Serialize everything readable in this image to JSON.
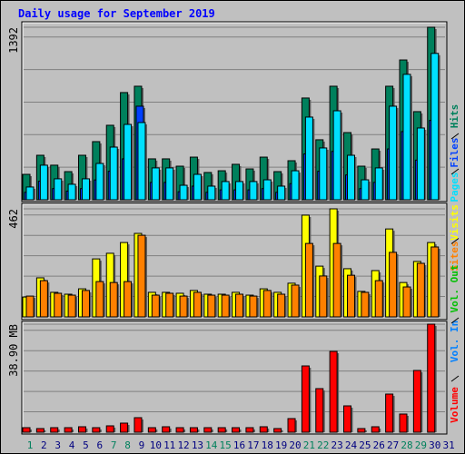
{
  "chart_data": [
    {
      "type": "bar",
      "title": "Daily usage for September 2019",
      "ylim": [
        0,
        1392
      ],
      "yticks": [
        1392
      ],
      "series": [
        {
          "name": "Hits",
          "color": "#00805c",
          "values": [
            205,
            359,
            279,
            227,
            359,
            469,
            601,
            865,
            916,
            330,
            330,
            271,
            344,
            220,
            234,
            286,
            249,
            344,
            227,
            315,
            821,
            484,
            916,
            542,
            271,
            410,
            916,
            1128,
            711,
            1392,
            null
          ]
        },
        {
          "name": "Files",
          "color": "#0040ff",
          "values": [
            60,
            150,
            90,
            70,
            90,
            160,
            230,
            330,
            755,
            140,
            140,
            65,
            110,
            60,
            80,
            80,
            80,
            90,
            60,
            130,
            370,
            230,
            390,
            200,
            90,
            140,
            410,
            550,
            320,
            640,
            null
          ]
        },
        {
          "name": "Pages",
          "color": "#00e0ff",
          "values": [
            103,
            279,
            169,
            125,
            169,
            293,
            425,
            608,
            623,
            257,
            257,
            117,
            205,
            110,
            147,
            147,
            147,
            161,
            110,
            234,
            667,
            418,
            718,
            359,
            161,
            257,
            755,
            1012,
            579,
            1181,
            null
          ]
        }
      ]
    },
    {
      "type": "bar",
      "ylim": [
        0,
        462
      ],
      "yticks": [
        462
      ],
      "series": [
        {
          "name": "Visits",
          "color": "#ffff00",
          "values": [
            85,
            167,
            105,
            97,
            120,
            248,
            272,
            318,
            357,
            105,
            105,
            101,
            113,
            97,
            97,
            105,
            93,
            120,
            105,
            144,
            435,
            217,
            462,
            206,
            109,
            198,
            376,
            147,
            237,
            318,
            null
          ]
        },
        {
          "name": "Sites",
          "color": "#ff8000",
          "values": [
            89,
            155,
            101,
            93,
            113,
            151,
            147,
            151,
            349,
            93,
            101,
            89,
            105,
            93,
            93,
            97,
            89,
            113,
            97,
            136,
            314,
            175,
            314,
            178,
            105,
            155,
            276,
            128,
            229,
            299,
            null
          ]
        }
      ]
    },
    {
      "type": "bar",
      "ylim": [
        0,
        38.9
      ],
      "yticks": [
        {
          "value": 38.9,
          "label": "38.90 MB"
        }
      ],
      "categories": [
        "1",
        "2",
        "3",
        "4",
        "5",
        "6",
        "7",
        "8",
        "9",
        "10",
        "11",
        "12",
        "13",
        "14",
        "15",
        "16",
        "17",
        "18",
        "19",
        "20",
        "21",
        "22",
        "23",
        "24",
        "25",
        "26",
        "27",
        "28",
        "29",
        "30",
        "31"
      ],
      "category_colors": [
        "#00805c",
        "#000080",
        "#000080",
        "#000080",
        "#000080",
        "#000080",
        "#00805c",
        "#00805c",
        "#000080",
        "#000080",
        "#000080",
        "#000080",
        "#000080",
        "#00805c",
        "#00805c",
        "#000080",
        "#000080",
        "#000080",
        "#000080",
        "#000080",
        "#00805c",
        "#00805c",
        "#000080",
        "#000080",
        "#000080",
        "#000080",
        "#000080",
        "#00805c",
        "#00805c",
        "#000080",
        "#000080"
      ],
      "series": [
        {
          "name": "Volume",
          "color": "#ff0000",
          "values": [
            1.63,
            1.31,
            1.63,
            1.63,
            1.96,
            1.63,
            2.29,
            3.27,
            5.23,
            1.63,
            1.96,
            1.63,
            1.63,
            1.63,
            1.63,
            1.63,
            1.63,
            1.96,
            1.31,
            4.9,
            23.86,
            15.69,
            29.09,
            9.48,
            1.31,
            1.96,
            13.73,
            6.54,
            22.23,
            38.9,
            null
          ]
        },
        {
          "name": "Vol. In",
          "color": "#0080ff",
          "values": [
            null,
            null,
            null,
            null,
            null,
            null,
            null,
            null,
            null,
            null,
            null,
            null,
            null,
            null,
            null,
            null,
            null,
            null,
            null,
            null,
            null,
            null,
            null,
            null,
            null,
            null,
            null,
            null,
            null,
            null,
            null
          ]
        },
        {
          "name": "Vol. Out",
          "color": "#00c000",
          "values": [
            null,
            null,
            null,
            null,
            null,
            null,
            null,
            null,
            null,
            null,
            null,
            null,
            null,
            null,
            null,
            null,
            null,
            null,
            null,
            null,
            null,
            null,
            null,
            null,
            null,
            null,
            null,
            null,
            null,
            null,
            null
          ]
        }
      ]
    }
  ]
}
